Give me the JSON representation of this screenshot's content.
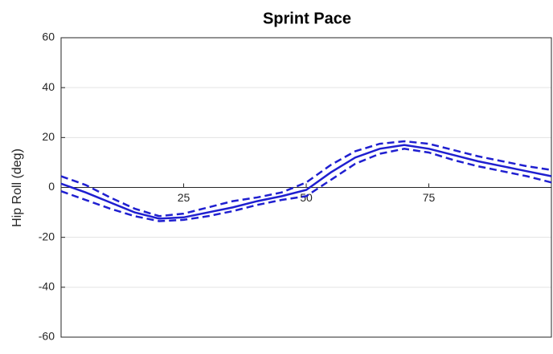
{
  "chart_data": {
    "type": "line",
    "title": "Sprint Pace",
    "y_label": "Hip Roll (deg)",
    "x": [
      0,
      5,
      10,
      15,
      20,
      25,
      30,
      35,
      40,
      45,
      50,
      55,
      60,
      65,
      70,
      75,
      80,
      85,
      90,
      95,
      100
    ],
    "series": [
      {
        "color": "#1f1fd0",
        "line_style": "solid",
        "values": [
          1.5,
          -2,
          -6,
          -10,
          -12.5,
          -12,
          -10,
          -8,
          -5.5,
          -3.5,
          -1,
          6,
          12,
          15.5,
          17,
          15.5,
          13,
          10.5,
          8.5,
          6.5,
          4.5
        ]
      },
      {
        "color": "#1f1fd0",
        "line_style": "dashed",
        "values": [
          4.5,
          1,
          -4,
          -8.5,
          -11.5,
          -10.5,
          -8,
          -5.5,
          -4,
          -2,
          2,
          9,
          14.5,
          17.5,
          18.5,
          17.5,
          15,
          12.5,
          10.5,
          8.5,
          7
        ]
      },
      {
        "color": "#1f1fd0",
        "line_style": "dashed",
        "values": [
          -1.5,
          -5,
          -8.5,
          -11.5,
          -13.5,
          -13,
          -11.5,
          -9.5,
          -7,
          -5,
          -3.5,
          3,
          9.5,
          13.5,
          15.5,
          14,
          11,
          8.5,
          6.5,
          4.5,
          2
        ]
      }
    ],
    "xlim": [
      0,
      100
    ],
    "xticks": [
      25,
      50,
      75
    ],
    "ylim": [
      -60,
      60
    ],
    "yticks": [
      -60,
      -40,
      -20,
      0,
      20,
      40,
      60
    ],
    "grid": true
  }
}
